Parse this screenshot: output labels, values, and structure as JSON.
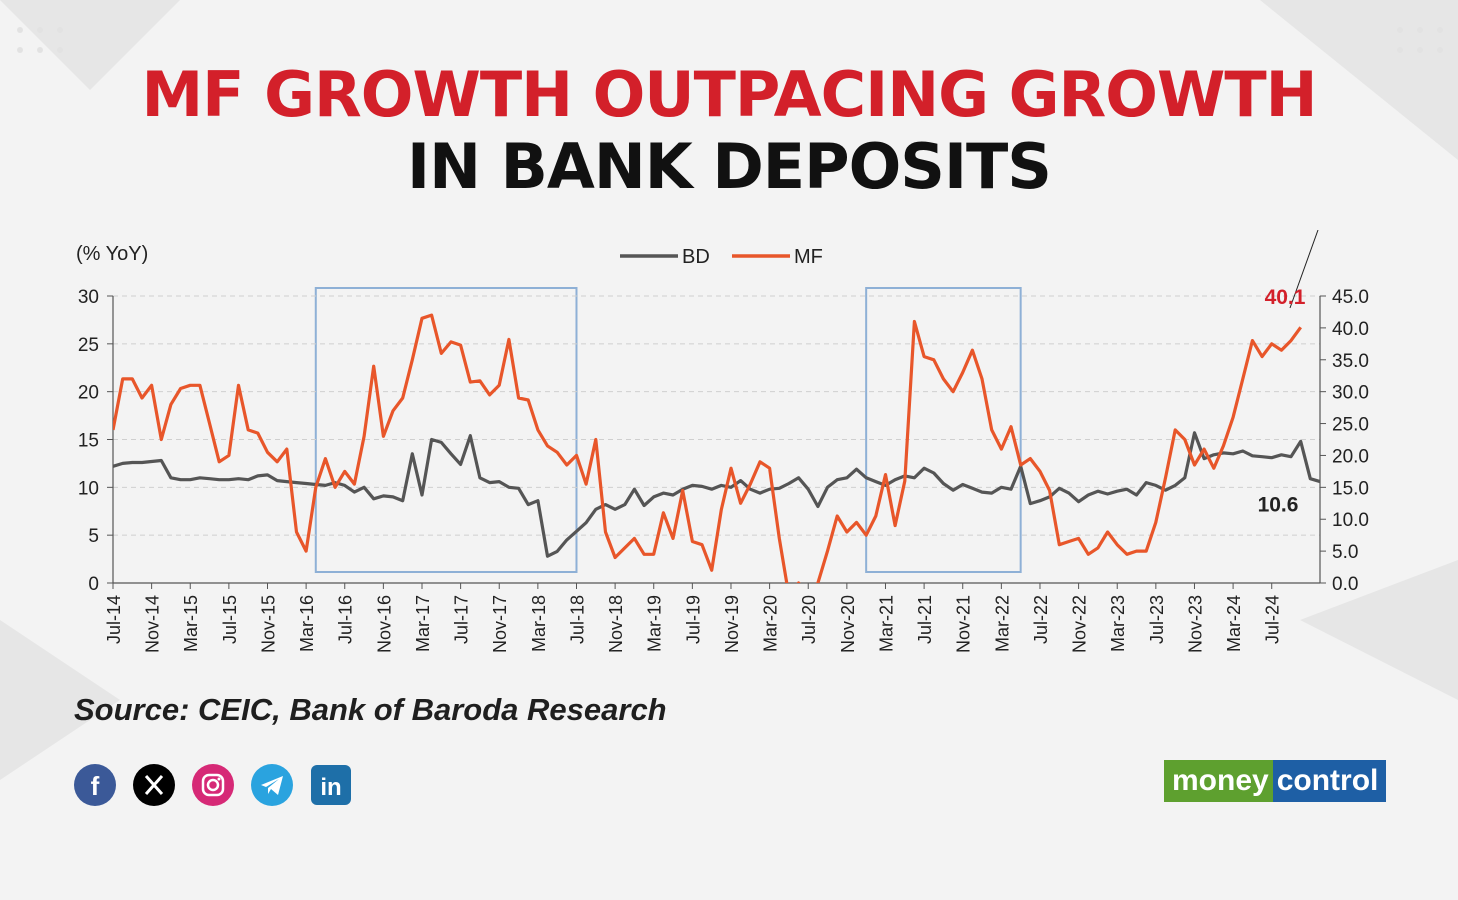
{
  "headline": {
    "line1": "MF GROWTH OUTPACING GROWTH",
    "line2": "IN BANK DEPOSITS"
  },
  "chart_data": {
    "type": "line",
    "ylabel": "(% YoY)",
    "yticks_left": [
      "0",
      "5",
      "10",
      "15",
      "20",
      "25",
      "30"
    ],
    "yticks_right": [
      "0.0",
      "5.0",
      "10.0",
      "15.0",
      "20.0",
      "25.0",
      "30.0",
      "35.0",
      "40.0",
      "45.0"
    ],
    "ylim_left": [
      0,
      30
    ],
    "ylim_right": [
      0,
      45
    ],
    "x_labels": [
      "Jul-14",
      "Nov-14",
      "Mar-15",
      "Jul-15",
      "Nov-15",
      "Mar-16",
      "Jul-16",
      "Nov-16",
      "Mar-17",
      "Jul-17",
      "Nov-17",
      "Mar-18",
      "Jul-18",
      "Nov-18",
      "Mar-19",
      "Jul-19",
      "Nov-19",
      "Mar-20",
      "Jul-20",
      "Nov-20",
      "Mar-21",
      "Jul-21",
      "Nov-21",
      "Mar-22",
      "Jul-22",
      "Nov-22",
      "Mar-23",
      "Jul-23",
      "Nov-23",
      "Mar-24",
      "Jul-24"
    ],
    "legend_position": "top-center",
    "grid": "horizontal-dashed",
    "series": [
      {
        "name": "BD",
        "axis": "left",
        "color": "#555555",
        "values": [
          12.2,
          12.5,
          12.6,
          12.6,
          12.7,
          12.8,
          11.0,
          10.8,
          10.8,
          11.0,
          10.9,
          10.8,
          10.8,
          10.9,
          10.8,
          11.2,
          11.3,
          10.7,
          10.6,
          10.5,
          10.4,
          10.3,
          10.2,
          10.5,
          10.2,
          9.5,
          10.0,
          8.8,
          9.1,
          9.0,
          8.6,
          13.5,
          9.2,
          15.0,
          14.7,
          13.5,
          12.4,
          15.4,
          11.0,
          10.5,
          10.6,
          10.0,
          9.9,
          8.2,
          8.6,
          2.8,
          3.3,
          4.5,
          5.4,
          6.3,
          7.7,
          8.2,
          7.7,
          8.2,
          9.8,
          8.1,
          9.0,
          9.4,
          9.2,
          9.8,
          10.2,
          10.1,
          9.8,
          10.2,
          10.0,
          10.7,
          9.8,
          9.4,
          9.8,
          9.9,
          10.4,
          11.0,
          9.8,
          8.0,
          10.0,
          10.8,
          11.0,
          11.9,
          11.0,
          10.6,
          10.2,
          10.8,
          11.2,
          11.0,
          12.0,
          11.5,
          10.4,
          9.7,
          10.3,
          9.9,
          9.5,
          9.4,
          10.0,
          9.8,
          12.2,
          8.3,
          8.6,
          9.0,
          9.9,
          9.4,
          8.5,
          9.2,
          9.6,
          9.3,
          9.6,
          9.8,
          9.2,
          10.5,
          10.2,
          9.7,
          10.2,
          11.0,
          15.7,
          13.0,
          13.4,
          13.6,
          13.5,
          13.8,
          13.3,
          13.2,
          13.1,
          13.4,
          13.2,
          14.8,
          10.9,
          10.6
        ]
      },
      {
        "name": "MF",
        "axis": "right",
        "color": "#e8562a",
        "values": [
          24.0,
          32.0,
          32.0,
          29.0,
          31.0,
          22.5,
          28.0,
          30.5,
          31.0,
          31.0,
          25.0,
          19.0,
          20.0,
          31.0,
          24.0,
          23.5,
          20.5,
          19.0,
          21.0,
          8.0,
          5.0,
          15.0,
          19.5,
          15.0,
          17.5,
          15.5,
          23.0,
          34.0,
          23.0,
          27.0,
          29.0,
          35.0,
          41.5,
          42.0,
          36.0,
          37.8,
          37.3,
          31.5,
          31.7,
          29.5,
          31.0,
          38.2,
          29.0,
          28.7,
          24.0,
          21.5,
          20.5,
          18.5,
          20.0,
          15.5,
          22.5,
          8.0,
          4.0,
          5.5,
          7.0,
          4.5,
          4.5,
          11.0,
          7.0,
          14.5,
          6.5,
          6.0,
          2.0,
          11.5,
          18.0,
          12.5,
          15.5,
          19.0,
          18.0,
          7.0,
          -2.0,
          0.0,
          -2.0,
          0.0,
          5.0,
          10.5,
          8.0,
          9.5,
          7.5,
          10.5,
          17.0,
          9.0,
          16.0,
          41.0,
          35.5,
          35.0,
          32.0,
          30.0,
          33.0,
          36.5,
          32.0,
          24.0,
          21.0,
          24.5,
          18.5,
          19.5,
          17.5,
          14.5,
          6.0,
          6.5,
          7.0,
          4.5,
          5.5,
          8.0,
          6.0,
          4.5,
          5.0,
          5.0,
          9.5,
          16.5,
          24.0,
          22.5,
          18.5,
          21.0,
          18.0,
          21.5,
          26.0,
          32.0,
          38.0,
          35.5,
          37.5,
          36.5,
          38.0,
          40.1
        ]
      }
    ],
    "annotations": [
      {
        "label": "40.1",
        "series": "MF"
      },
      {
        "label": "10.6",
        "series": "BD"
      }
    ],
    "highlight_boxes": [
      {
        "from": "Apr-16",
        "to": "Jul-18"
      },
      {
        "from": "Jan-21",
        "to": "May-22"
      }
    ],
    "start_month": "Jul-14"
  },
  "source": "Source: CEIC, Bank of Baroda Research",
  "social": [
    "facebook-icon",
    "x-icon",
    "instagram-icon",
    "telegram-icon",
    "linkedin-icon"
  ],
  "logo": {
    "part1": "money",
    "part2": "control"
  }
}
